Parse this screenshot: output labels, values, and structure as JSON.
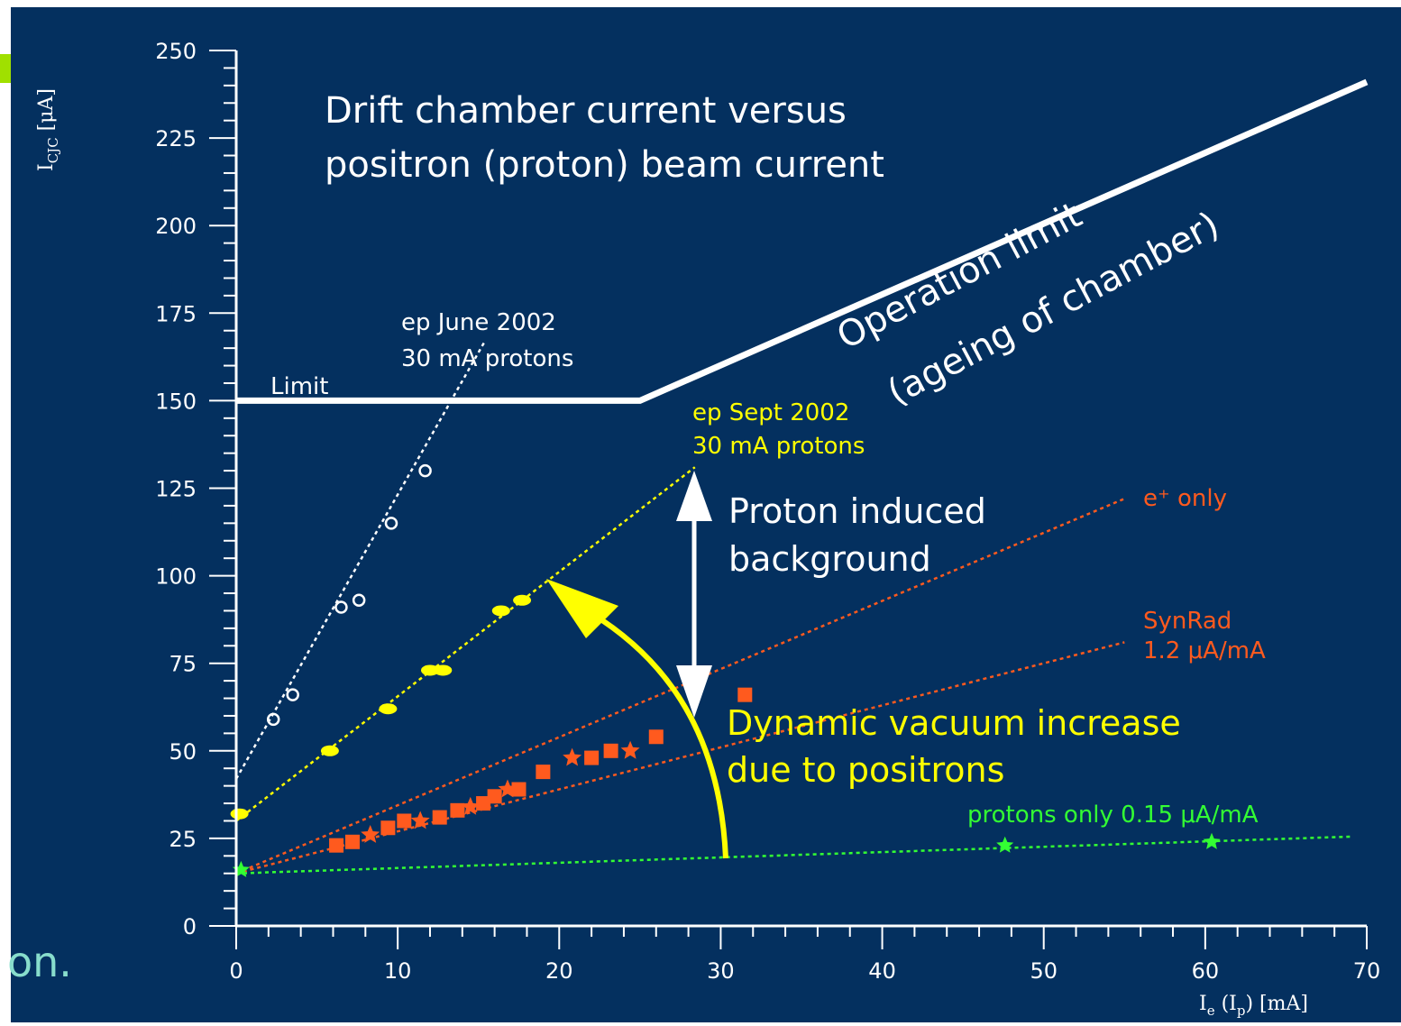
{
  "colors": {
    "background": "#04305f",
    "axis": "#ffffff",
    "white_series": "#ffffff",
    "yellow_series": "#ffff00",
    "orange_series": "#ff5a1e",
    "green_series": "#33ff33",
    "slide_text": "#88ddcc",
    "bullet": "#a0e000"
  },
  "slide_fragment_text": "on.",
  "chart_data": {
    "type": "scatter",
    "title": "Drift chamber current versus",
    "subtitle": "positron (proton) beam current",
    "ylabel": "I_CJC [μA]",
    "xlabel": "I_e (I_p) [mA]",
    "xlim": [
      0,
      70
    ],
    "ylim": [
      0,
      250
    ],
    "x_ticks": [
      0,
      10,
      20,
      30,
      40,
      50,
      60,
      70
    ],
    "y_ticks": [
      0,
      25,
      50,
      75,
      100,
      125,
      150,
      175,
      200,
      225,
      250
    ],
    "grid": false,
    "limit_line": {
      "label": "Limit",
      "points": [
        [
          0,
          150
        ],
        [
          25,
          150
        ],
        [
          70,
          241
        ]
      ]
    },
    "series": [
      {
        "name": "ep June 2002",
        "name_line2": "30 mA protons",
        "color_key": "white_series",
        "marker": "open-circle",
        "points": [
          [
            2.3,
            59
          ],
          [
            3.5,
            66
          ],
          [
            6.5,
            91
          ],
          [
            7.6,
            93
          ],
          [
            9.6,
            115
          ],
          [
            11.7,
            130
          ]
        ],
        "fit": [
          [
            0,
            42
          ],
          [
            15.4,
            167
          ]
        ]
      },
      {
        "name": "ep Sept 2002",
        "name_line2": "30 mA protons",
        "color_key": "yellow_series",
        "marker": "filled-oval",
        "points": [
          [
            0.2,
            32
          ],
          [
            5.8,
            50
          ],
          [
            9.4,
            62
          ],
          [
            12.0,
            73
          ],
          [
            12.8,
            73
          ],
          [
            16.4,
            90
          ],
          [
            17.7,
            93
          ]
        ],
        "fit": [
          [
            0,
            30
          ],
          [
            28.4,
            131
          ]
        ]
      },
      {
        "name": "e⁺ only",
        "color_key": "orange_series",
        "marker": "filled-square",
        "points": [
          [
            6.2,
            23
          ],
          [
            7.2,
            24
          ],
          [
            8.3,
            26
          ],
          [
            9.4,
            28
          ],
          [
            10.4,
            30
          ],
          [
            11.4,
            30
          ],
          [
            12.6,
            31
          ],
          [
            13.7,
            33
          ],
          [
            14.5,
            34
          ],
          [
            15.3,
            35
          ],
          [
            16.0,
            37
          ],
          [
            16.8,
            39
          ],
          [
            17.5,
            39
          ],
          [
            19.0,
            44
          ],
          [
            20.8,
            48
          ],
          [
            22.0,
            48
          ],
          [
            23.2,
            50
          ],
          [
            24.4,
            50
          ],
          [
            26.0,
            54
          ],
          [
            31.5,
            66
          ]
        ],
        "fit": [
          [
            0,
            15
          ],
          [
            55,
            122
          ]
        ]
      },
      {
        "name": "SynRad",
        "name_line2": "1.2 μA/mA",
        "color_key": "orange_series",
        "marker": "none",
        "points": [],
        "fit": [
          [
            0,
            15
          ],
          [
            55,
            81
          ]
        ]
      },
      {
        "name": "protons only 0.15 μA/mA",
        "color_key": "green_series",
        "marker": "star",
        "points": [
          [
            0.3,
            16
          ],
          [
            47.6,
            23
          ],
          [
            60.4,
            24
          ]
        ],
        "fit": [
          [
            0,
            15
          ],
          [
            69,
            25.5
          ]
        ]
      }
    ],
    "annotations": [
      {
        "id": "operation",
        "text": "Operation limit"
      },
      {
        "id": "ageing",
        "text": "(ageing of chamber)"
      },
      {
        "id": "proton-bg-1",
        "text": "Proton induced"
      },
      {
        "id": "proton-bg-2",
        "text": "background"
      },
      {
        "id": "dyn-vac-1",
        "text": "Dynamic vacuum increase"
      },
      {
        "id": "dyn-vac-2",
        "text": "due to positrons"
      }
    ]
  }
}
